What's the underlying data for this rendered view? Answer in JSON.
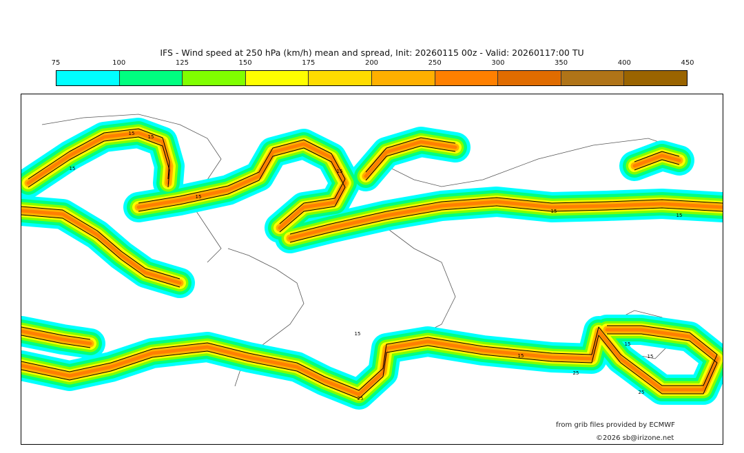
{
  "title": "IFS - Wind speed at 250 hPa (km/h) mean and spread, Init: 20260115 00z - Valid: 20260117:00 TU",
  "colorbar": {
    "ticks": [
      "75",
      "100",
      "125",
      "150",
      "175",
      "200",
      "250",
      "300",
      "350",
      "400",
      "450"
    ],
    "colors": [
      "#00ffff",
      "#00ff80",
      "#80ff00",
      "#ffff00",
      "#ffdc00",
      "#ffb000",
      "#ff8000",
      "#e06c00",
      "#b07418",
      "#9a6400"
    ]
  },
  "contour_labels": [
    "15",
    "15",
    "15",
    "15",
    "15",
    "15",
    "15",
    "15",
    "15",
    "15",
    "25",
    "25",
    "15",
    "25"
  ],
  "credits": {
    "source": "from grib files provided by ECMWF",
    "copyright": "©2026 sb@irizone.net"
  }
}
